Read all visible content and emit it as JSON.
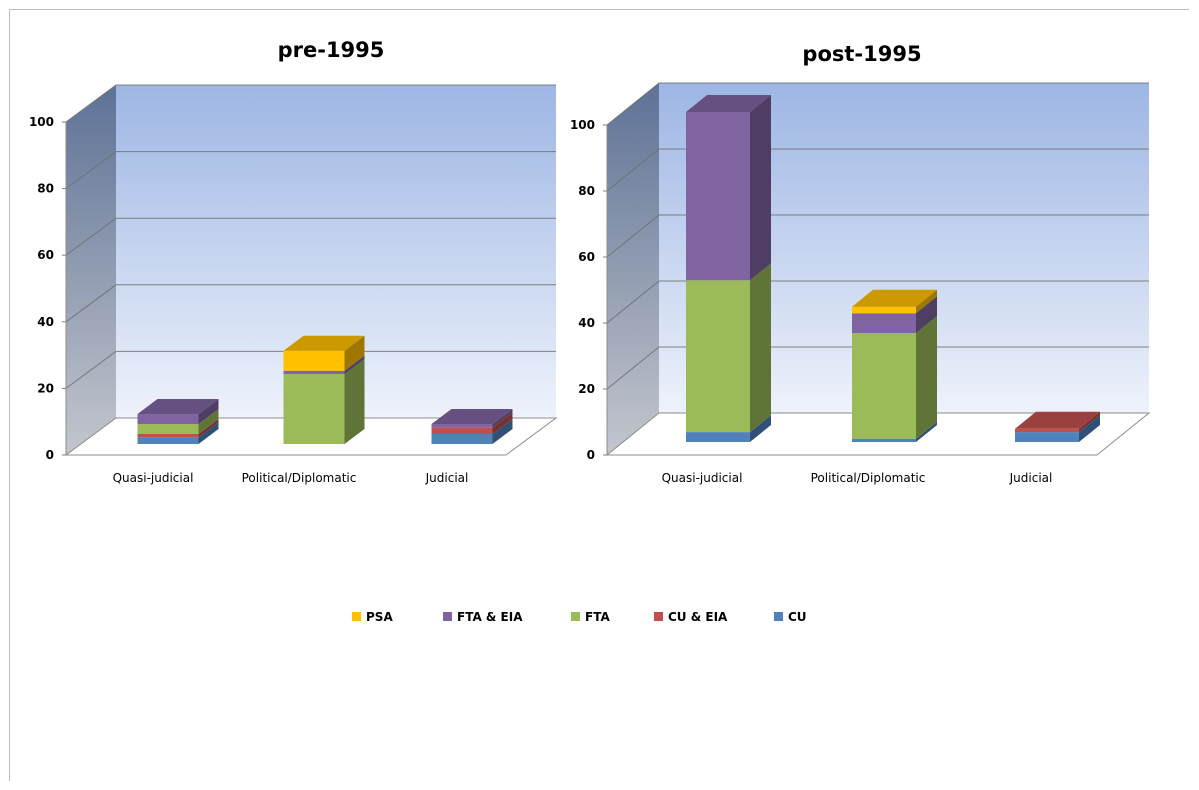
{
  "chart_data": [
    {
      "type": "bar",
      "stacked": true,
      "three_d": true,
      "title": "pre-1995",
      "categories": [
        "Quasi-judicial",
        "Political/Diplomatic",
        "Judicial"
      ],
      "ylim": [
        0,
        100
      ],
      "yticks": [
        "0",
        "20",
        "40",
        "60",
        "80",
        "100"
      ],
      "grid": true,
      "series": [
        {
          "name": "CU",
          "color": "#4F81BD",
          "values": [
            2,
            0,
            3
          ]
        },
        {
          "name": "CU & EIA",
          "color": "#C0504D",
          "values": [
            1,
            0,
            2
          ]
        },
        {
          "name": "FTA",
          "color": "#9BBB59",
          "values": [
            3,
            21,
            0
          ]
        },
        {
          "name": "FTA & EIA",
          "color": "#8064A2",
          "values": [
            3,
            1,
            1
          ]
        },
        {
          "name": "PSA",
          "color": "#FFC000",
          "values": [
            0,
            6,
            0
          ]
        }
      ]
    },
    {
      "type": "bar",
      "stacked": true,
      "three_d": true,
      "title": "post-1995",
      "categories": [
        "Quasi-judicial",
        "Political/Diplomatic",
        "Judicial"
      ],
      "ylim": [
        0,
        100
      ],
      "yticks": [
        "0",
        "20",
        "40",
        "60",
        "80",
        "100"
      ],
      "grid": true,
      "series": [
        {
          "name": "CU",
          "color": "#4F81BD",
          "values": [
            3,
            1,
            3
          ]
        },
        {
          "name": "CU & EIA",
          "color": "#C0504D",
          "values": [
            0,
            0,
            1
          ]
        },
        {
          "name": "FTA",
          "color": "#9BBB59",
          "values": [
            46,
            32,
            0
          ]
        },
        {
          "name": "FTA & EIA",
          "color": "#8064A2",
          "values": [
            51,
            6,
            0
          ]
        },
        {
          "name": "PSA",
          "color": "#FFC000",
          "values": [
            0,
            2,
            0
          ]
        }
      ]
    }
  ],
  "legend": {
    "position": "bottom",
    "items": [
      {
        "label": "PSA",
        "color": "#FFC000"
      },
      {
        "label": "FTA & EIA",
        "color": "#8064A2"
      },
      {
        "label": "FTA",
        "color": "#9BBB59"
      },
      {
        "label": "CU & EIA",
        "color": "#C0504D"
      },
      {
        "label": "CU",
        "color": "#4F81BD"
      }
    ]
  }
}
